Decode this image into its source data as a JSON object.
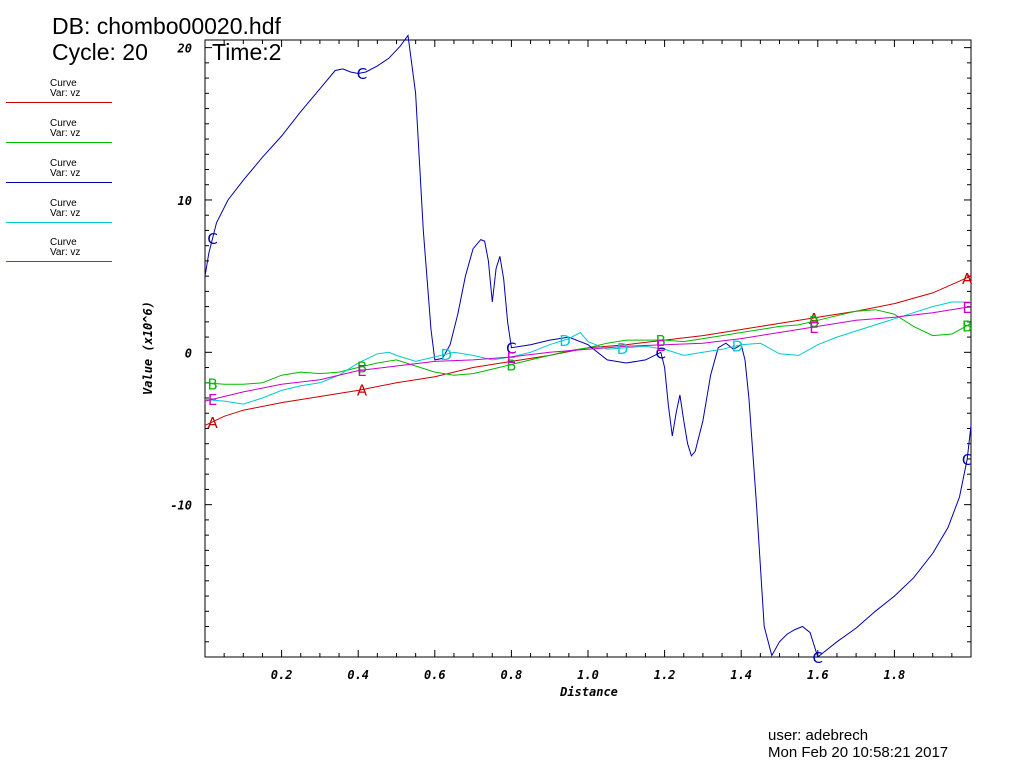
{
  "header": {
    "db_line": "DB: chombo00020.hdf",
    "cycle_line": "Cycle: 20",
    "time_line": "Time:2"
  },
  "footer": {
    "user_line": "user: adebrech",
    "date_line": "Mon Feb 20 10:58:21 2017"
  },
  "legend": [
    {
      "line1": "Curve",
      "line2": "Var: vz",
      "color": "#cc0000"
    },
    {
      "line1": "Curve",
      "line2": "Var: vz",
      "color": "#00bb00"
    },
    {
      "line1": "Curve",
      "line2": "Var: vz",
      "color": "#0000aa"
    },
    {
      "line1": "Curve",
      "line2": "Var: vz",
      "color": "#00cccc"
    },
    {
      "line1": "Curve",
      "line2": "Var: vz",
      "color": "#cc00cc"
    }
  ],
  "chart_data": {
    "type": "line",
    "xlabel": "Distance",
    "ylabel": "Value (x10^6)",
    "xlim": [
      0,
      2
    ],
    "ylim": [
      -20,
      20.5
    ],
    "x_ticks": [
      "0.2",
      "0.4",
      "0.6",
      "0.8",
      "1.0",
      "1.2",
      "1.4",
      "1.6",
      "1.8"
    ],
    "x_tick_values": [
      0.2,
      0.4,
      0.6,
      0.8,
      1.0,
      1.2,
      1.4,
      1.6,
      1.8
    ],
    "y_ticks": [
      "20",
      "10",
      "0",
      "-10"
    ],
    "y_tick_values": [
      20,
      10,
      0,
      -10
    ],
    "grid": false,
    "series": [
      {
        "label": "A",
        "color": "#cc0000",
        "x": [
          0,
          0.05,
          0.1,
          0.2,
          0.3,
          0.4,
          0.5,
          0.6,
          0.7,
          0.8,
          0.9,
          1.0,
          1.1,
          1.2,
          1.3,
          1.4,
          1.5,
          1.6,
          1.7,
          1.8,
          1.9,
          2.0
        ],
        "y": [
          -4.8,
          -4.2,
          -3.8,
          -3.3,
          -2.9,
          -2.5,
          -2.0,
          -1.6,
          -1.0,
          -0.6,
          -0.2,
          0.3,
          0.5,
          0.8,
          1.1,
          1.5,
          1.9,
          2.3,
          2.7,
          3.2,
          3.9,
          5.0
        ],
        "markers": [
          0.02,
          0.41,
          1.59,
          1.99
        ]
      },
      {
        "label": "B",
        "color": "#00bb00",
        "x": [
          0,
          0.05,
          0.1,
          0.15,
          0.2,
          0.25,
          0.3,
          0.35,
          0.4,
          0.45,
          0.5,
          0.55,
          0.6,
          0.65,
          0.7,
          0.75,
          0.8,
          0.85,
          0.9,
          0.95,
          1.0,
          1.05,
          1.1,
          1.15,
          1.2,
          1.25,
          1.3,
          1.35,
          1.4,
          1.45,
          1.5,
          1.55,
          1.6,
          1.65,
          1.7,
          1.75,
          1.8,
          1.85,
          1.9,
          1.95,
          2.0
        ],
        "y": [
          -2.0,
          -2.1,
          -2.1,
          -2.0,
          -1.5,
          -1.3,
          -1.4,
          -1.3,
          -1.0,
          -0.7,
          -0.5,
          -0.9,
          -1.3,
          -1.5,
          -1.4,
          -1.1,
          -0.8,
          -0.5,
          -0.2,
          0.1,
          0.3,
          0.6,
          0.8,
          0.8,
          0.8,
          0.7,
          0.9,
          1.1,
          1.3,
          1.5,
          1.7,
          1.8,
          2.1,
          2.4,
          2.7,
          2.8,
          2.5,
          1.7,
          1.1,
          1.2,
          1.9
        ],
        "markers": [
          0.02,
          0.41,
          0.8,
          1.19,
          1.59,
          1.99
        ]
      },
      {
        "label": "C",
        "color": "#0000aa",
        "x": [
          0,
          0.01,
          0.03,
          0.06,
          0.1,
          0.15,
          0.2,
          0.25,
          0.3,
          0.34,
          0.36,
          0.38,
          0.4,
          0.42,
          0.45,
          0.48,
          0.51,
          0.53,
          0.55,
          0.57,
          0.59,
          0.6,
          0.62,
          0.64,
          0.66,
          0.68,
          0.7,
          0.72,
          0.73,
          0.74,
          0.75,
          0.76,
          0.77,
          0.78,
          0.79,
          0.8,
          0.85,
          0.9,
          0.95,
          1.0,
          1.05,
          1.1,
          1.15,
          1.19,
          1.2,
          1.21,
          1.22,
          1.23,
          1.24,
          1.25,
          1.26,
          1.27,
          1.28,
          1.3,
          1.32,
          1.34,
          1.36,
          1.38,
          1.4,
          1.41,
          1.42,
          1.44,
          1.46,
          1.48,
          1.5,
          1.52,
          1.54,
          1.56,
          1.58,
          1.6,
          1.62,
          1.65,
          1.7,
          1.75,
          1.8,
          1.85,
          1.9,
          1.94,
          1.97,
          1.99,
          2.0
        ],
        "y": [
          5.0,
          6.5,
          8.5,
          10.0,
          11.3,
          12.8,
          14.2,
          15.8,
          17.3,
          18.5,
          18.6,
          18.4,
          18.3,
          18.4,
          18.8,
          19.3,
          20.1,
          20.8,
          17.0,
          8.0,
          1.5,
          -0.5,
          -0.4,
          0.5,
          2.5,
          5.0,
          6.8,
          7.4,
          7.3,
          6.0,
          3.3,
          5.5,
          6.3,
          4.8,
          2.0,
          0.3,
          0.5,
          0.8,
          1.0,
          0.5,
          -0.5,
          -0.7,
          -0.5,
          0.0,
          -1.0,
          -3.5,
          -5.5,
          -4.0,
          -2.8,
          -4.5,
          -6.0,
          -6.8,
          -6.5,
          -4.5,
          -1.5,
          0.3,
          0.6,
          0.2,
          0.5,
          -0.5,
          -3.0,
          -10.0,
          -18.0,
          -19.9,
          -19.0,
          -18.5,
          -18.2,
          -18.0,
          -18.4,
          -20.0,
          -19.6,
          -19.0,
          -18.1,
          -17.0,
          -16.0,
          -14.8,
          -13.2,
          -11.5,
          -9.5,
          -7.0,
          -4.8
        ],
        "markers": [
          0.02,
          0.41,
          0.8,
          1.19,
          1.6,
          1.99
        ]
      },
      {
        "label": "D",
        "color": "#00cccc",
        "x": [
          0,
          0.05,
          0.1,
          0.15,
          0.2,
          0.25,
          0.3,
          0.35,
          0.4,
          0.45,
          0.48,
          0.5,
          0.55,
          0.6,
          0.65,
          0.7,
          0.75,
          0.8,
          0.85,
          0.9,
          0.95,
          0.98,
          1.0,
          1.05,
          1.1,
          1.15,
          1.2,
          1.25,
          1.3,
          1.35,
          1.4,
          1.45,
          1.5,
          1.55,
          1.6,
          1.65,
          1.7,
          1.75,
          1.8,
          1.85,
          1.9,
          1.95,
          2.0
        ],
        "y": [
          -3.1,
          -3.2,
          -3.4,
          -3.0,
          -2.5,
          -2.2,
          -2.0,
          -1.5,
          -0.7,
          -0.1,
          0.0,
          -0.2,
          -0.6,
          -0.3,
          0.0,
          -0.2,
          -0.5,
          -0.3,
          0.0,
          0.5,
          0.9,
          1.3,
          0.7,
          0.2,
          0.3,
          0.4,
          0.2,
          -0.2,
          0.0,
          0.2,
          0.5,
          0.6,
          -0.1,
          -0.2,
          0.5,
          1.0,
          1.4,
          1.8,
          2.2,
          2.6,
          3.0,
          3.3,
          3.3
        ],
        "markers": [
          0.63,
          0.94,
          1.09,
          1.39
        ]
      },
      {
        "label": "E",
        "color": "#cc00cc",
        "x": [
          0,
          0.1,
          0.2,
          0.3,
          0.4,
          0.5,
          0.6,
          0.7,
          0.8,
          0.9,
          1.0,
          1.1,
          1.2,
          1.3,
          1.4,
          1.5,
          1.6,
          1.7,
          1.8,
          1.9,
          2.0
        ],
        "y": [
          -3.2,
          -2.6,
          -2.1,
          -1.8,
          -1.2,
          -0.9,
          -0.6,
          -0.5,
          -0.3,
          0.0,
          0.2,
          0.4,
          0.5,
          0.6,
          0.9,
          1.3,
          1.7,
          2.1,
          2.3,
          2.6,
          3.0
        ],
        "markers": [
          0.02,
          0.41,
          0.8,
          1.19,
          1.59,
          1.99
        ]
      }
    ]
  }
}
